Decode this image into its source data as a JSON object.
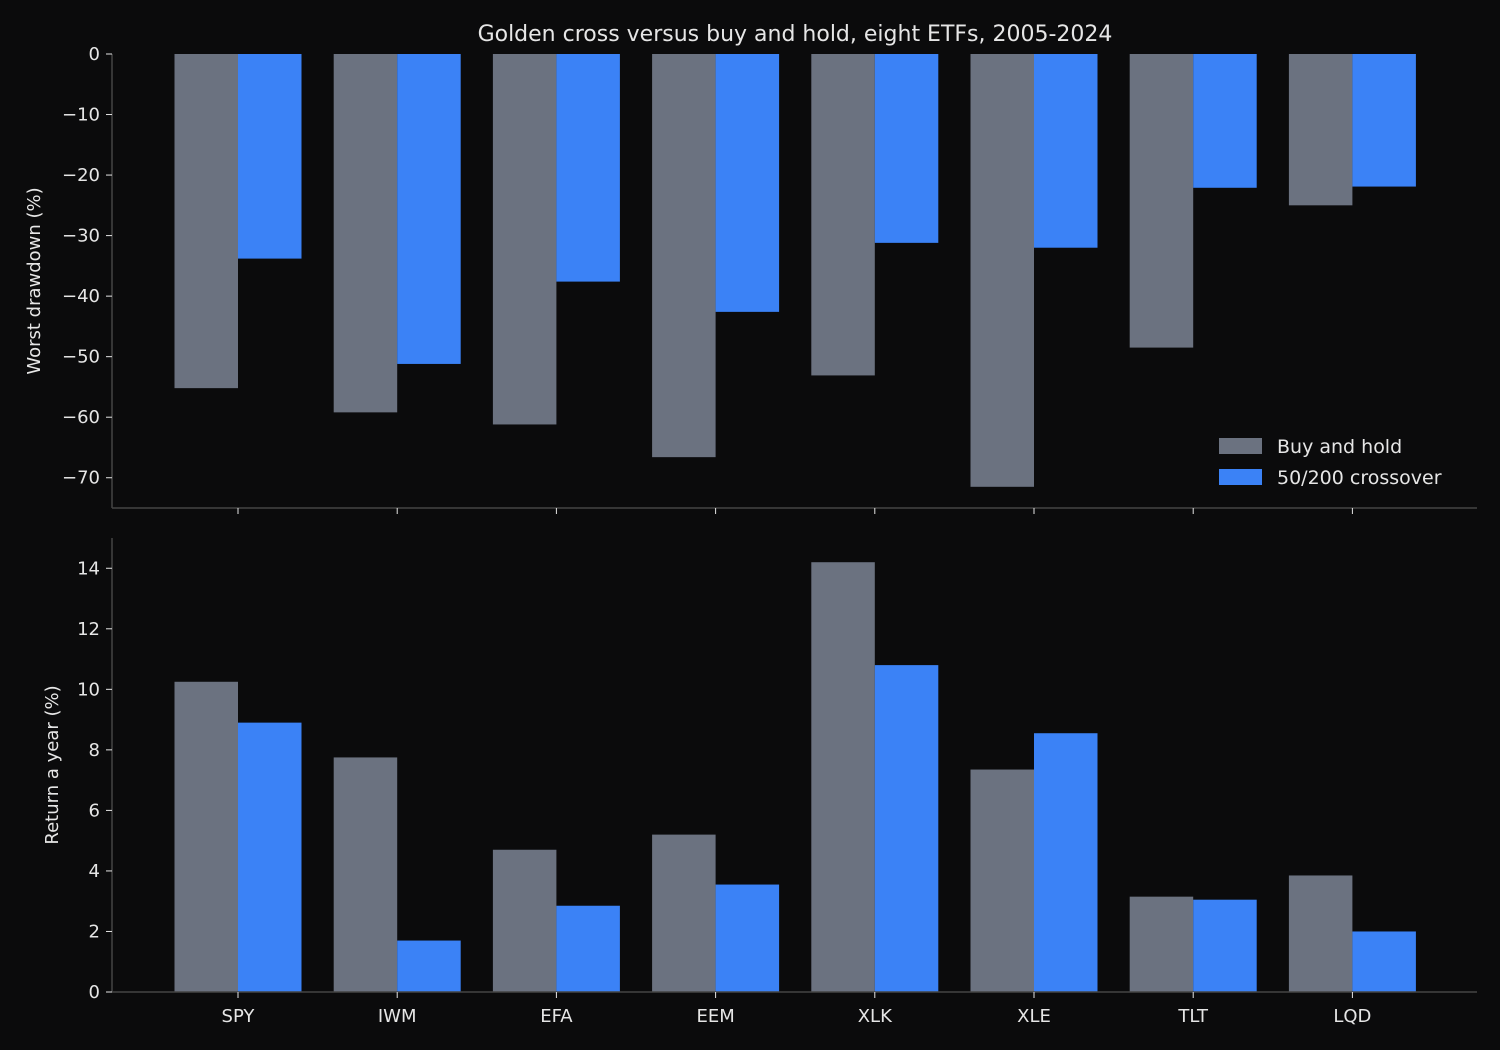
{
  "chart_data": {
    "type": "bar",
    "title": "Golden cross versus buy and hold, eight ETFs, 2005-2024",
    "categories": [
      "SPY",
      "IWM",
      "EFA",
      "EEM",
      "XLK",
      "XLE",
      "TLT",
      "LQD"
    ],
    "series_names": [
      "Buy and hold",
      "50/200 crossover"
    ],
    "colors": {
      "background": "#0b0b0c",
      "buy_and_hold": "#6b7280",
      "crossover": "#3b82f6",
      "axis": "#444444",
      "text": "#e6e6e6"
    },
    "legend": {
      "placement": "lower-right",
      "panel": "top"
    },
    "grid": false,
    "panels": [
      {
        "ylabel": "Worst drawdown (%)",
        "ylim": [
          -75,
          0
        ],
        "yticks": [
          0,
          -10,
          -20,
          -30,
          -40,
          -50,
          -60,
          -70
        ],
        "ytick_labels": [
          "0",
          "−10",
          "−20",
          "−30",
          "−40",
          "−50",
          "−60",
          "−70"
        ],
        "series": [
          {
            "name": "Buy and hold",
            "values": [
              -55.2,
              -59.2,
              -61.2,
              -66.6,
              -53.1,
              -71.5,
              -48.5,
              -25.0
            ]
          },
          {
            "name": "50/200 crossover",
            "values": [
              -33.8,
              -51.2,
              -37.6,
              -42.6,
              -31.2,
              -32.0,
              -22.1,
              -21.9
            ]
          }
        ]
      },
      {
        "ylabel": "Return a year (%)",
        "ylim": [
          0,
          15
        ],
        "yticks": [
          0,
          2,
          4,
          6,
          8,
          10,
          12,
          14
        ],
        "ytick_labels": [
          "0",
          "2",
          "4",
          "6",
          "8",
          "10",
          "12",
          "14"
        ],
        "series": [
          {
            "name": "Buy and hold",
            "values": [
              10.25,
              7.75,
              4.7,
              5.2,
              14.2,
              7.35,
              3.15,
              3.85
            ]
          },
          {
            "name": "50/200 crossover",
            "values": [
              8.9,
              1.7,
              2.85,
              3.55,
              10.8,
              8.55,
              3.05,
              2.0
            ]
          }
        ]
      }
    ]
  }
}
